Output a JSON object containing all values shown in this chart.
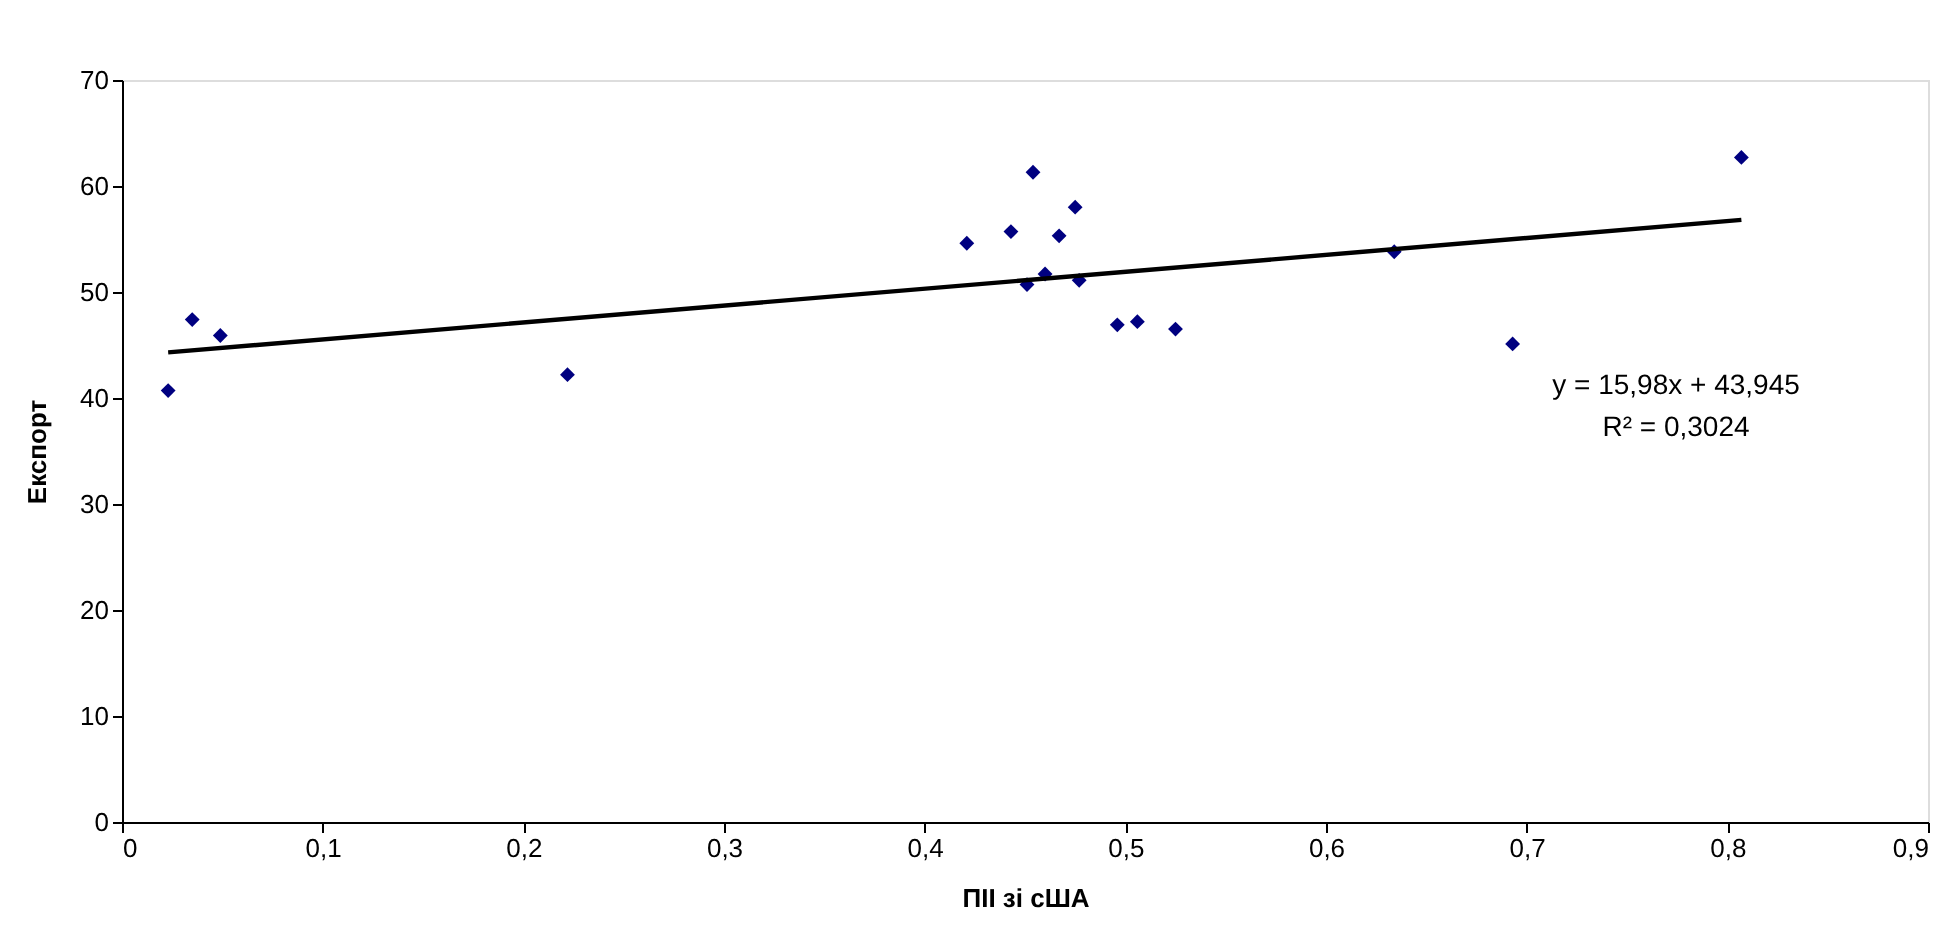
{
  "chart_data": {
    "type": "scatter",
    "xlabel": "ПІІ зі сША",
    "ylabel": "Експорт",
    "marker": "diamond",
    "grid": false,
    "xlim": [
      0,
      0.9
    ],
    "xticks": [
      0,
      {
        "value": 0.1,
        "label": "0,1"
      },
      {
        "value": 0.2,
        "label": "0,2"
      },
      {
        "value": 0.3,
        "label": "0,3"
      },
      {
        "value": 0.4,
        "label": "0,4"
      },
      {
        "value": 0.5,
        "label": "0,5"
      },
      {
        "value": 0.6,
        "label": "0,6"
      },
      {
        "value": 0.7,
        "label": "0,7"
      },
      {
        "value": 0.8,
        "label": "0,8"
      },
      {
        "value": 0.9,
        "label": "0,9"
      }
    ],
    "ylim": [
      0,
      70
    ],
    "yticks": [
      0,
      10,
      20,
      30,
      40,
      50,
      60,
      70
    ],
    "series": [
      {
        "color": "#000080",
        "x": [
          0.023,
          0.035,
          0.049,
          0.222,
          0.421,
          0.443,
          0.454,
          0.467,
          0.475,
          0.46,
          0.451,
          0.477,
          0.496,
          0.506,
          0.525,
          0.634,
          0.693,
          0.807
        ],
        "values": [
          40.7,
          47.4,
          45.9,
          42.2,
          54.6,
          55.7,
          61.3,
          55.3,
          58.0,
          51.7,
          50.7,
          51.1,
          46.9,
          47.2,
          46.5,
          53.8,
          45.1,
          62.7
        ]
      },
      {
        "type": "line",
        "marker": "none",
        "color": "#000000",
        "x": [
          0.023,
          0.807
        ],
        "values": [
          44.3,
          56.8
        ]
      }
    ],
    "annotations": [
      "y = 15,98x + 43,945",
      "R² = 0,3024"
    ]
  }
}
